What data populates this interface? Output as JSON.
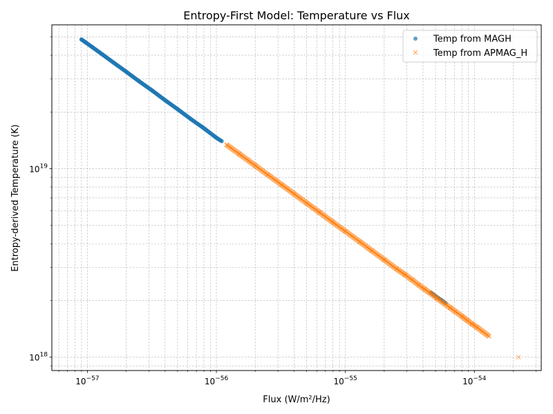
{
  "chart_data": {
    "type": "scatter",
    "title": "Entropy-First Model: Temperature vs Flux",
    "xlabel": "Flux (W/m²/Hz)",
    "ylabel": "Entropy-derived Temperature (K)",
    "xscale": "log",
    "yscale": "log",
    "xlim": [
      5.3e-58,
      3.3e-54
    ],
    "ylim": [
      8.5e+17,
      5.8e+19
    ],
    "x_tick_values": [
      1e-57,
      1e-56,
      1e-55,
      1e-54
    ],
    "x_tick_labels": [
      {
        "base": "10",
        "exp": "−57"
      },
      {
        "base": "10",
        "exp": "−56"
      },
      {
        "base": "10",
        "exp": "−55"
      },
      {
        "base": "10",
        "exp": "−54"
      }
    ],
    "y_tick_values": [
      1e+18,
      1e+19
    ],
    "y_tick_labels": [
      {
        "base": "10",
        "exp": "18"
      },
      {
        "base": "10",
        "exp": "19"
      }
    ],
    "grid": true,
    "legend_position": "top-right",
    "series": [
      {
        "name": "Temp from MAGH",
        "marker": "circle",
        "color": "#1f77b4",
        "points": [
          [
            9e-58,
            4.85e+19
          ],
          [
            9.6e-58,
            4.7e+19
          ],
          [
            1.1e-57,
            4.4e+19
          ],
          [
            1.3e-57,
            4.05e+19
          ],
          [
            1.6e-57,
            3.65e+19
          ],
          [
            2e-57,
            3.27e+19
          ],
          [
            2.5e-57,
            2.92e+19
          ],
          [
            3.2e-57,
            2.59e+19
          ],
          [
            4e-57,
            2.31e+19
          ],
          [
            5e-57,
            2.07e+19
          ],
          [
            6.3e-57,
            1.84e+19
          ],
          [
            8e-57,
            1.64e+19
          ],
          [
            1e-56,
            1.46e+19
          ],
          [
            1.1e-56,
            1.4e+19
          ],
          [
            4.6e-55,
            2.2e+18
          ],
          [
            5.2e-55,
            2.07e+18
          ],
          [
            5.6e-55,
            2e+18
          ],
          [
            6e-55,
            1.93e+18
          ]
        ]
      },
      {
        "name": "Temp from APMAG_H",
        "marker": "x",
        "color": "#ff7f0e",
        "points": [
          [
            1.2e-56,
            1.34e+19
          ],
          [
            1.5e-56,
            1.2e+19
          ],
          [
            2e-56,
            1.04e+19
          ],
          [
            2.5e-56,
            9.3e+18
          ],
          [
            3.2e-56,
            8.23e+18
          ],
          [
            4e-56,
            7.36e+18
          ],
          [
            5e-56,
            6.58e+18
          ],
          [
            6.3e-56,
            5.87e+18
          ],
          [
            8e-56,
            5.2e+18
          ],
          [
            1e-55,
            4.66e+18
          ],
          [
            1.3e-55,
            4.09e+18
          ],
          [
            1.6e-55,
            3.68e+18
          ],
          [
            2e-55,
            3.29e+18
          ],
          [
            2.5e-55,
            2.94e+18
          ],
          [
            2.9e-55,
            2.74e+18
          ],
          [
            3.3e-55,
            2.57e+18
          ],
          [
            3.7e-55,
            2.42e+18
          ],
          [
            4.1e-55,
            2.3e+18
          ],
          [
            4.5e-55,
            2.2e+18
          ],
          [
            5.1e-55,
            2.06e+18
          ],
          [
            6.5e-55,
            1.83e+18
          ],
          [
            7.1e-55,
            1.75e+18
          ],
          [
            8e-55,
            1.65e+18
          ],
          [
            8.8e-55,
            1.57e+18
          ],
          [
            9.6e-55,
            1.5e+18
          ],
          [
            1.05e-54,
            1.44e+18
          ],
          [
            1.3e-54,
            1.29e+18
          ],
          [
            2.2e-54,
            1e+18
          ]
        ]
      }
    ]
  }
}
